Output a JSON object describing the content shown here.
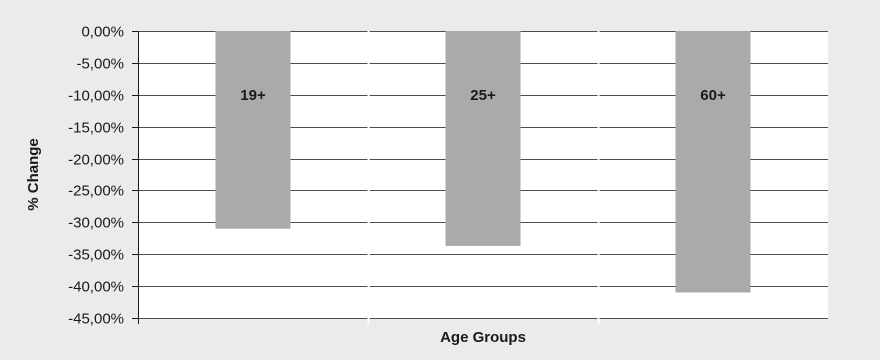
{
  "chart_data": {
    "type": "bar",
    "title": "",
    "xlabel": "Age Groups",
    "ylabel": "% Change",
    "categories": [
      "19+",
      "25+",
      "60+"
    ],
    "values": [
      -31,
      -33.7,
      -41
    ],
    "ylim": [
      -45,
      0
    ],
    "y_ticks": [
      0,
      -5,
      -10,
      -15,
      -20,
      -25,
      -30,
      -35,
      -40,
      -45
    ],
    "y_tick_labels": [
      "0,00%",
      "-5,00%",
      "-10,00%",
      "-15,00%",
      "-20,00%",
      "-25,00%",
      "-30,00%",
      "-35,00%",
      "-40,00%",
      "-45,00%"
    ],
    "bar_labels_inside": true,
    "grid": true,
    "colors": {
      "bar": "#a9aaac",
      "grid": "#4d4d4d",
      "background": "#ebebeb",
      "plot_background": "#ffffff",
      "separator": "#ffffff"
    }
  }
}
